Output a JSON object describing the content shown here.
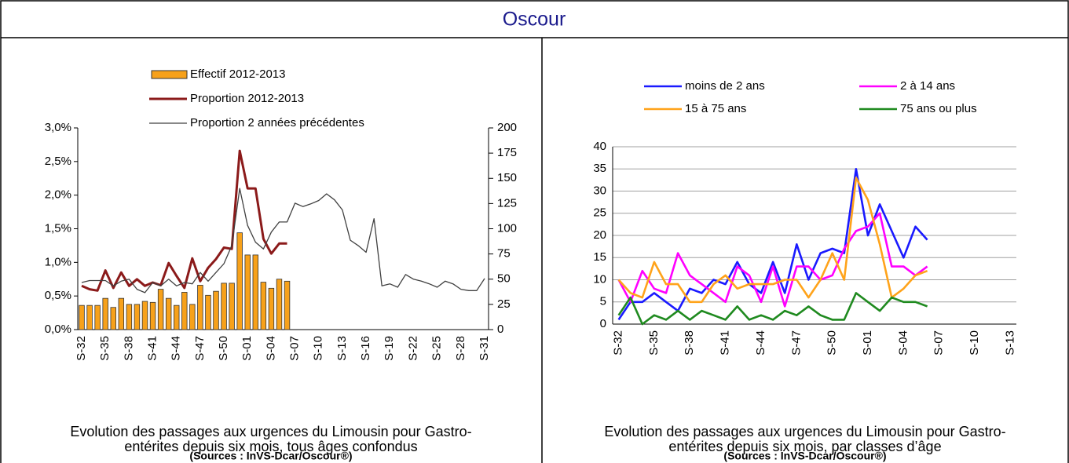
{
  "header": {
    "title": "Oscour"
  },
  "chart_data": [
    {
      "type": "bar",
      "categories": [
        "S-32",
        null,
        null,
        "S-35",
        null,
        null,
        "S-38",
        null,
        null,
        "S-41",
        null,
        null,
        "S-44",
        null,
        null,
        "S-47",
        null,
        null,
        "S-50",
        null,
        null,
        "S-01",
        null,
        null,
        "S-04",
        null,
        null,
        "S-07",
        null,
        null,
        "S-10",
        null,
        null,
        "S-13",
        null,
        null,
        "S-16",
        null,
        null,
        "S-19",
        null,
        null,
        "S-22",
        null,
        null,
        "S-25",
        null,
        null,
        "S-28",
        null,
        null,
        "S-31"
      ],
      "series": [
        {
          "name": "Effectif 2012-2013",
          "type": "bar",
          "axis": "y2",
          "color": "#f7a11a",
          "values": [
            24,
            24,
            24,
            31,
            22,
            31,
            25,
            25,
            28,
            27,
            40,
            31,
            24,
            37,
            25,
            44,
            34,
            38,
            46,
            46,
            96,
            74,
            74,
            47,
            41,
            50,
            48,
            null,
            null,
            null,
            null,
            null,
            null,
            null,
            null,
            null,
            null,
            null,
            null,
            null,
            null,
            null,
            null,
            null,
            null,
            null,
            null,
            null,
            null,
            null,
            null,
            null
          ]
        },
        {
          "name": "Proportion 2012-2013",
          "type": "line",
          "color": "#8b1a1a",
          "values": [
            0.65,
            0.6,
            0.58,
            0.88,
            0.62,
            0.85,
            0.65,
            0.75,
            0.65,
            0.7,
            0.66,
            0.99,
            0.8,
            0.62,
            1.06,
            0.72,
            0.92,
            1.05,
            1.22,
            1.2,
            2.66,
            2.1,
            2.1,
            1.35,
            1.13,
            1.28,
            1.28,
            null,
            null,
            null,
            null,
            null,
            null,
            null,
            null,
            null,
            null,
            null,
            null,
            null,
            null,
            null,
            null,
            null,
            null,
            null,
            null,
            null,
            null,
            null,
            null,
            null
          ]
        },
        {
          "name": "Proportion 2 années précédentes",
          "type": "line",
          "color": "#404040",
          "values": [
            0.7,
            0.73,
            0.73,
            0.73,
            0.65,
            0.72,
            0.75,
            0.6,
            0.55,
            0.7,
            0.65,
            0.75,
            0.65,
            0.7,
            0.68,
            0.85,
            0.72,
            0.85,
            0.98,
            1.25,
            2.1,
            1.55,
            1.3,
            1.2,
            1.45,
            1.6,
            1.6,
            1.88,
            1.83,
            1.87,
            1.92,
            2.02,
            1.93,
            1.78,
            1.33,
            1.25,
            1.15,
            1.65,
            0.65,
            0.68,
            0.63,
            0.82,
            0.75,
            0.72,
            0.68,
            0.63,
            0.72,
            0.68,
            0.6,
            0.58,
            0.58,
            0.76
          ]
        }
      ],
      "ylim": [
        0,
        3
      ],
      "yticks": [
        {
          "value": 0,
          "label": "0,0%"
        },
        {
          "value": 0.5,
          "label": "0,5%"
        },
        {
          "value": 1,
          "label": "1,0%"
        },
        {
          "value": 1.5,
          "label": "1,5%"
        },
        {
          "value": 2,
          "label": "2,0%"
        },
        {
          "value": 2.5,
          "label": "2,5%"
        },
        {
          "value": 3,
          "label": "3,0%"
        }
      ],
      "y2lim": [
        0,
        200
      ],
      "y2ticks": [
        0,
        25,
        50,
        75,
        100,
        125,
        150,
        175,
        200
      ],
      "grid": false,
      "caption": [
        "Evolution des passages aux urgences  du Limousin pour Gastro-",
        "entérites depuis six mois, tous âges confondus"
      ],
      "source": "(Sources : InVS-Dcar/Oscour®)"
    },
    {
      "type": "line",
      "categories": [
        "S-32",
        null,
        null,
        "S-35",
        null,
        null,
        "S-38",
        null,
        null,
        "S-41",
        null,
        null,
        "S-44",
        null,
        null,
        "S-47",
        null,
        null,
        "S-50",
        null,
        null,
        "S-01",
        null,
        null,
        "S-04",
        null,
        null,
        "S-07",
        null,
        null,
        "S-10",
        null,
        null,
        "S-13"
      ],
      "series": [
        {
          "name": "moins de 2 ans",
          "color": "#1a1aff",
          "values": [
            1,
            5,
            5,
            7,
            5,
            3,
            8,
            7,
            10,
            9,
            14,
            9,
            7,
            14,
            7,
            18,
            10,
            16,
            17,
            16,
            35,
            20,
            27,
            21,
            15,
            22,
            19,
            null,
            null,
            null,
            null,
            null,
            null,
            null
          ]
        },
        {
          "name": "2 à 14 ans",
          "color": "#ff00ff",
          "values": [
            10,
            5,
            12,
            8,
            7,
            16,
            11,
            9,
            7,
            5,
            13,
            11,
            5,
            13,
            4,
            13,
            13,
            10,
            11,
            17,
            21,
            22,
            25,
            13,
            13,
            11,
            13,
            null,
            null,
            null,
            null,
            null,
            null,
            null
          ]
        },
        {
          "name": "15 à 75 ans",
          "color": "#ffa31a",
          "values": [
            10,
            7,
            6,
            14,
            9,
            9,
            5,
            5,
            9,
            11,
            8,
            9,
            9,
            9,
            10,
            10,
            6,
            10,
            16,
            10,
            33,
            28,
            18,
            6,
            8,
            11,
            12,
            null,
            null,
            null,
            null,
            null,
            null,
            null
          ]
        },
        {
          "name": "75 ans ou plus",
          "color": "#1f8a1f",
          "values": [
            2,
            6,
            0,
            2,
            1,
            3,
            1,
            3,
            2,
            1,
            4,
            1,
            2,
            1,
            3,
            2,
            4,
            2,
            1,
            1,
            7,
            5,
            3,
            6,
            5,
            5,
            4,
            null,
            null,
            null,
            null,
            null,
            null,
            null
          ]
        }
      ],
      "ylim": [
        0,
        40
      ],
      "yticks": [
        0,
        5,
        10,
        15,
        20,
        25,
        30,
        35,
        40
      ],
      "grid": true,
      "caption": [
        "Evolution des passages aux urgences du Limousin pour Gastro-",
        "entérites depuis six mois, par classes d’âge"
      ],
      "source": "(Sources : InVS-Dcar/Oscour®)"
    }
  ]
}
